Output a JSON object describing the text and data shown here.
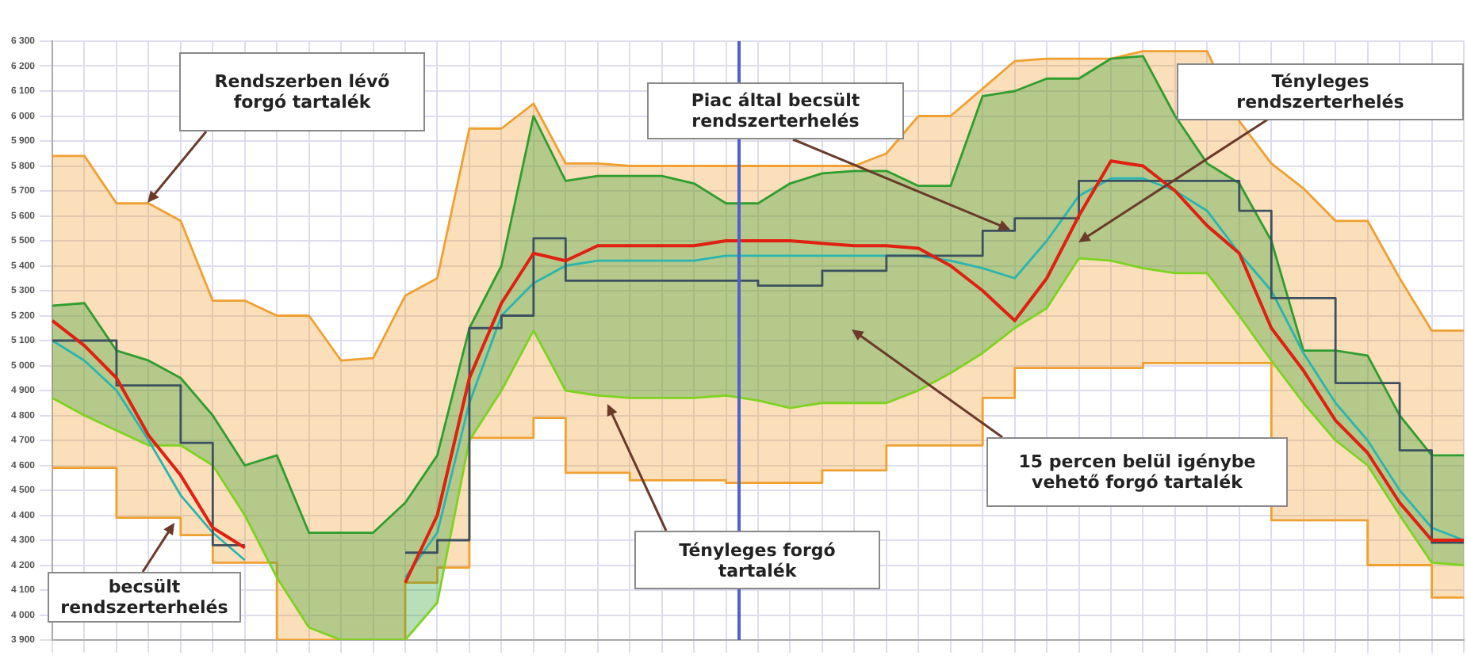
{
  "chart_data": {
    "type": "line",
    "categories": [
      null,
      null,
      null,
      null,
      null,
      null,
      null,
      null,
      null,
      null,
      null,
      null,
      null,
      null,
      null,
      null,
      null,
      null,
      null,
      null,
      null,
      null,
      null,
      null,
      null,
      null,
      null,
      null,
      null,
      null,
      null,
      null,
      null,
      null,
      null,
      null,
      null,
      null,
      null,
      null,
      null,
      null,
      null,
      null,
      null
    ],
    "series": [
      {
        "type": "area",
        "color": "#f0a030",
        "values": [
          5840,
          5840,
          5650,
          5650,
          5580,
          5260,
          5260,
          5200,
          5200,
          5020,
          5030,
          5280,
          5350,
          5950,
          5950,
          6050,
          5810,
          5810,
          5800,
          5800,
          5800,
          5800,
          5800,
          5800,
          5800,
          5800,
          5850,
          6000,
          6000,
          6110,
          6220,
          6230,
          6230,
          6230,
          6260,
          6260,
          6260,
          5980,
          5810,
          5710,
          5580,
          5580,
          5350,
          5140,
          5140
        ]
      },
      {
        "type": "step",
        "color": "#f0a030",
        "values": [
          4590,
          4590,
          4390,
          4390,
          4320,
          4210,
          4210,
          3900,
          3900,
          3900,
          3900,
          4130,
          4190,
          4710,
          4710,
          4790,
          4570,
          4570,
          4540,
          4540,
          4540,
          4530,
          4530,
          4530,
          4580,
          4580,
          4680,
          4680,
          4680,
          4870,
          4990,
          4990,
          4990,
          4990,
          5010,
          5010,
          5010,
          5010,
          4380,
          4380,
          4380,
          4200,
          4200,
          4070,
          4070
        ]
      },
      {
        "type": "area",
        "color": "#2e9e2e",
        "values": [
          5240,
          5250,
          5060,
          5020,
          4950,
          4800,
          4600,
          4640,
          4330,
          4330,
          4330,
          4450,
          4640,
          5150,
          5400,
          6000,
          5740,
          5760,
          5760,
          5760,
          5730,
          5650,
          5650,
          5730,
          5770,
          5780,
          5780,
          5720,
          5720,
          6080,
          6100,
          6150,
          6150,
          6230,
          6240,
          6000,
          5810,
          5730,
          5500,
          5060,
          5060,
          5040,
          4800,
          4640,
          4640
        ]
      },
      {
        "color": "#7ed321",
        "values": [
          4870,
          4800,
          4740,
          4680,
          4680,
          4600,
          4400,
          4150,
          3950,
          3900,
          3900,
          3900,
          4050,
          4700,
          4900,
          5140,
          4900,
          4880,
          4870,
          4870,
          4870,
          4880,
          4860,
          4830,
          4850,
          4850,
          4850,
          4900,
          4970,
          5050,
          5150,
          5230,
          5430,
          5420,
          5390,
          5370,
          5370,
          5200,
          5020,
          4850,
          4700,
          4600,
          4400,
          4210,
          4200
        ]
      },
      {
        "color": "#2ab5b0",
        "values": [
          5100,
          5020,
          4900,
          4700,
          4480,
          4330,
          4220,
          null,
          null,
          null,
          null,
          4150,
          4330,
          4850,
          5200,
          5330,
          5400,
          5420,
          5420,
          5420,
          5420,
          5440,
          5440,
          5440,
          5440,
          5440,
          5440,
          5440,
          5420,
          5390,
          5350,
          5500,
          5680,
          5750,
          5750,
          5700,
          5620,
          5450,
          5300,
          5050,
          4850,
          4700,
          4500,
          4350,
          4300
        ]
      },
      {
        "type": "step",
        "color": "#3c5060",
        "values": [
          5100,
          5100,
          4920,
          4920,
          4690,
          4280,
          4280,
          null,
          null,
          null,
          null,
          4250,
          4300,
          5150,
          5200,
          5510,
          5340,
          5340,
          5340,
          5340,
          5340,
          5340,
          5320,
          5320,
          5380,
          5380,
          5440,
          5440,
          5440,
          5540,
          5590,
          5590,
          5740,
          5740,
          5740,
          5740,
          5740,
          5620,
          5270,
          5270,
          4930,
          4930,
          4660,
          4290,
          4290
        ]
      },
      {
        "color": "#e02010",
        "values": [
          5180,
          5080,
          4950,
          4720,
          4560,
          4350,
          4270,
          null,
          null,
          null,
          null,
          4130,
          4400,
          4950,
          5250,
          5450,
          5420,
          5480,
          5480,
          5480,
          5480,
          5500,
          5500,
          5500,
          5490,
          5480,
          5480,
          5470,
          5400,
          5300,
          5180,
          5350,
          5600,
          5820,
          5800,
          5700,
          5560,
          5450,
          5150,
          4980,
          4780,
          4650,
          4450,
          4300,
          4300
        ]
      }
    ],
    "ylim": [
      3900,
      6300
    ],
    "yticks": [
      {
        "value": 3900,
        "label": "3 900"
      },
      {
        "value": 4000,
        "label": "4 000"
      },
      {
        "value": 4100,
        "label": "4 100"
      },
      {
        "value": 4200,
        "label": "4 200"
      },
      {
        "value": 4300,
        "label": "4 300"
      },
      {
        "value": 4400,
        "label": "4 400"
      },
      {
        "value": 4500,
        "label": "4 500"
      },
      {
        "value": 4600,
        "label": "4 600"
      },
      {
        "value": 4700,
        "label": "4 700"
      },
      {
        "value": 4800,
        "label": "4 800"
      },
      {
        "value": 4900,
        "label": "4 900"
      },
      {
        "value": 5000,
        "label": "5 000"
      },
      {
        "value": 5100,
        "label": "5 100"
      },
      {
        "value": 5200,
        "label": "5 200"
      },
      {
        "value": 5300,
        "label": "5 300"
      },
      {
        "value": 5400,
        "label": "5 400"
      },
      {
        "value": 5500,
        "label": "5 500"
      },
      {
        "value": 5600,
        "label": "5 600"
      },
      {
        "value": 5700,
        "label": "5 700"
      },
      {
        "value": 5800,
        "label": "5 800"
      },
      {
        "value": 5900,
        "label": "5 900"
      },
      {
        "value": 6000,
        "label": "6 000"
      },
      {
        "value": 6100,
        "label": "6 100"
      },
      {
        "value": 6200,
        "label": "6 200"
      },
      {
        "value": 6300,
        "label": "6 300"
      }
    ],
    "grid": true,
    "legend": false,
    "tick_labels": "y",
    "annotations": [
      "Rendszerben lévő forgó tartalék",
      "Piac által becsült rendszerterhelés",
      "Tényleges rendszerterhelés",
      "15 percen belül igénybe vehető forgó tartalék",
      "Tényleges forgó tartalék",
      "becsült rendszerterhelés"
    ]
  }
}
